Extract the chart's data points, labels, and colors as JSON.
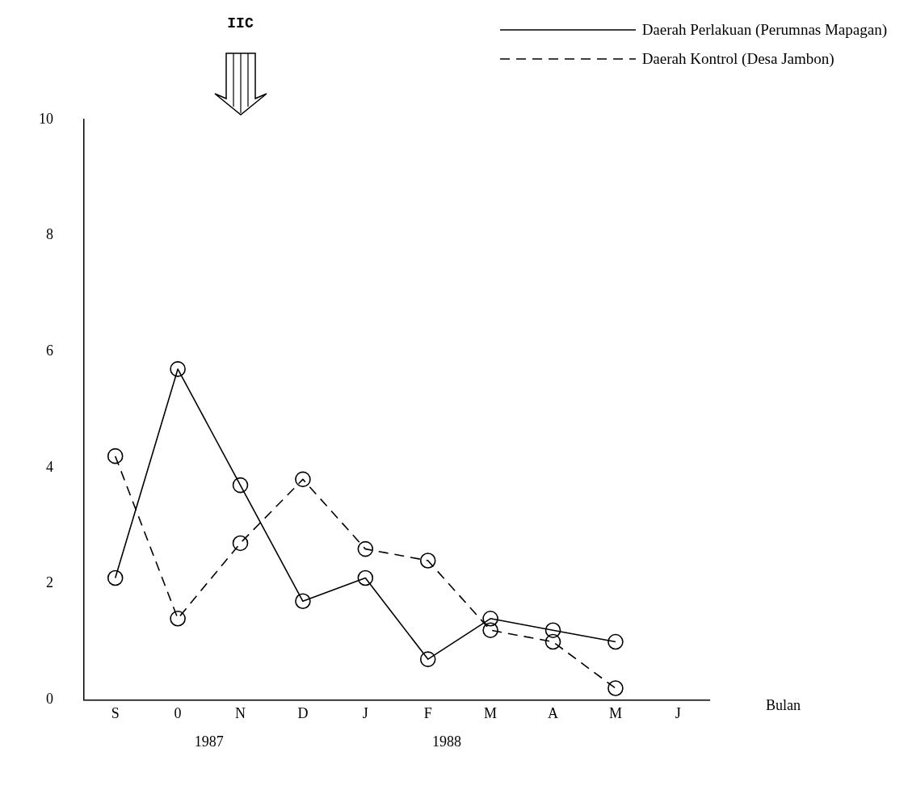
{
  "chart_data": {
    "type": "line",
    "xlabel": "Bulan",
    "categories": [
      "S",
      "0",
      "N",
      "D",
      "J",
      "F",
      "M",
      "A",
      "M",
      "J"
    ],
    "series": [
      {
        "name": "Daerah Perlakuan (Perumnas Mapagan)",
        "color": "#000000",
        "line_style": "solid",
        "values": [
          2.1,
          5.7,
          3.7,
          1.7,
          2.1,
          0.7,
          1.4,
          1.2,
          1.0,
          null
        ]
      },
      {
        "name": "Daerah Kontrol (Desa Jambon)",
        "color": "#000000",
        "line_style": "dashed",
        "values": [
          4.2,
          1.4,
          2.7,
          3.8,
          2.6,
          2.4,
          1.2,
          1.0,
          0.2,
          null
        ]
      }
    ],
    "ylim": [
      0,
      10
    ],
    "yticks": [
      0,
      2,
      4,
      6,
      8,
      10
    ],
    "marker": "circle",
    "legend": "top right",
    "annotations": [
      "IIC",
      "1987",
      "1988"
    ]
  }
}
